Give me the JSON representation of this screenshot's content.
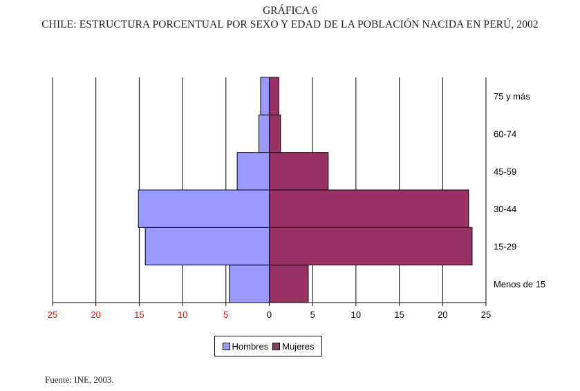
{
  "header": {
    "label": "GRÁFICA 6",
    "title": "CHILE: ESTRUCTURA PORCENTUAL POR SEXO Y EDAD DE LA POBLACIÓN NACIDA EN PERÚ, 2002"
  },
  "source": "Fuente: INE, 2003.",
  "colors": {
    "hombres": "#9999ff",
    "mujeres": "#993366",
    "tick_left": "#ff0000",
    "tick_right": "#000000",
    "grid": "#000000"
  },
  "chart_data": {
    "type": "bar",
    "orientation": "horizontal-pyramid",
    "categories": [
      "Menos de 15",
      "15-29",
      "30-44",
      "45-59",
      "60-74",
      "75 y más"
    ],
    "series": [
      {
        "name": "Hombres",
        "side": "left",
        "values": [
          4.6,
          14.3,
          15.1,
          3.7,
          1.2,
          1.0
        ]
      },
      {
        "name": "Mujeres",
        "side": "right",
        "values": [
          4.5,
          23.4,
          23.0,
          6.8,
          1.3,
          1.1
        ]
      }
    ],
    "x_ticks_left": [
      "25",
      "20",
      "15",
      "10",
      "5"
    ],
    "x_ticks_right": [
      "0",
      "5",
      "10",
      "15",
      "20",
      "25"
    ],
    "xlim": [
      -25,
      25
    ],
    "grid": true,
    "legend_position": "bottom-center"
  }
}
